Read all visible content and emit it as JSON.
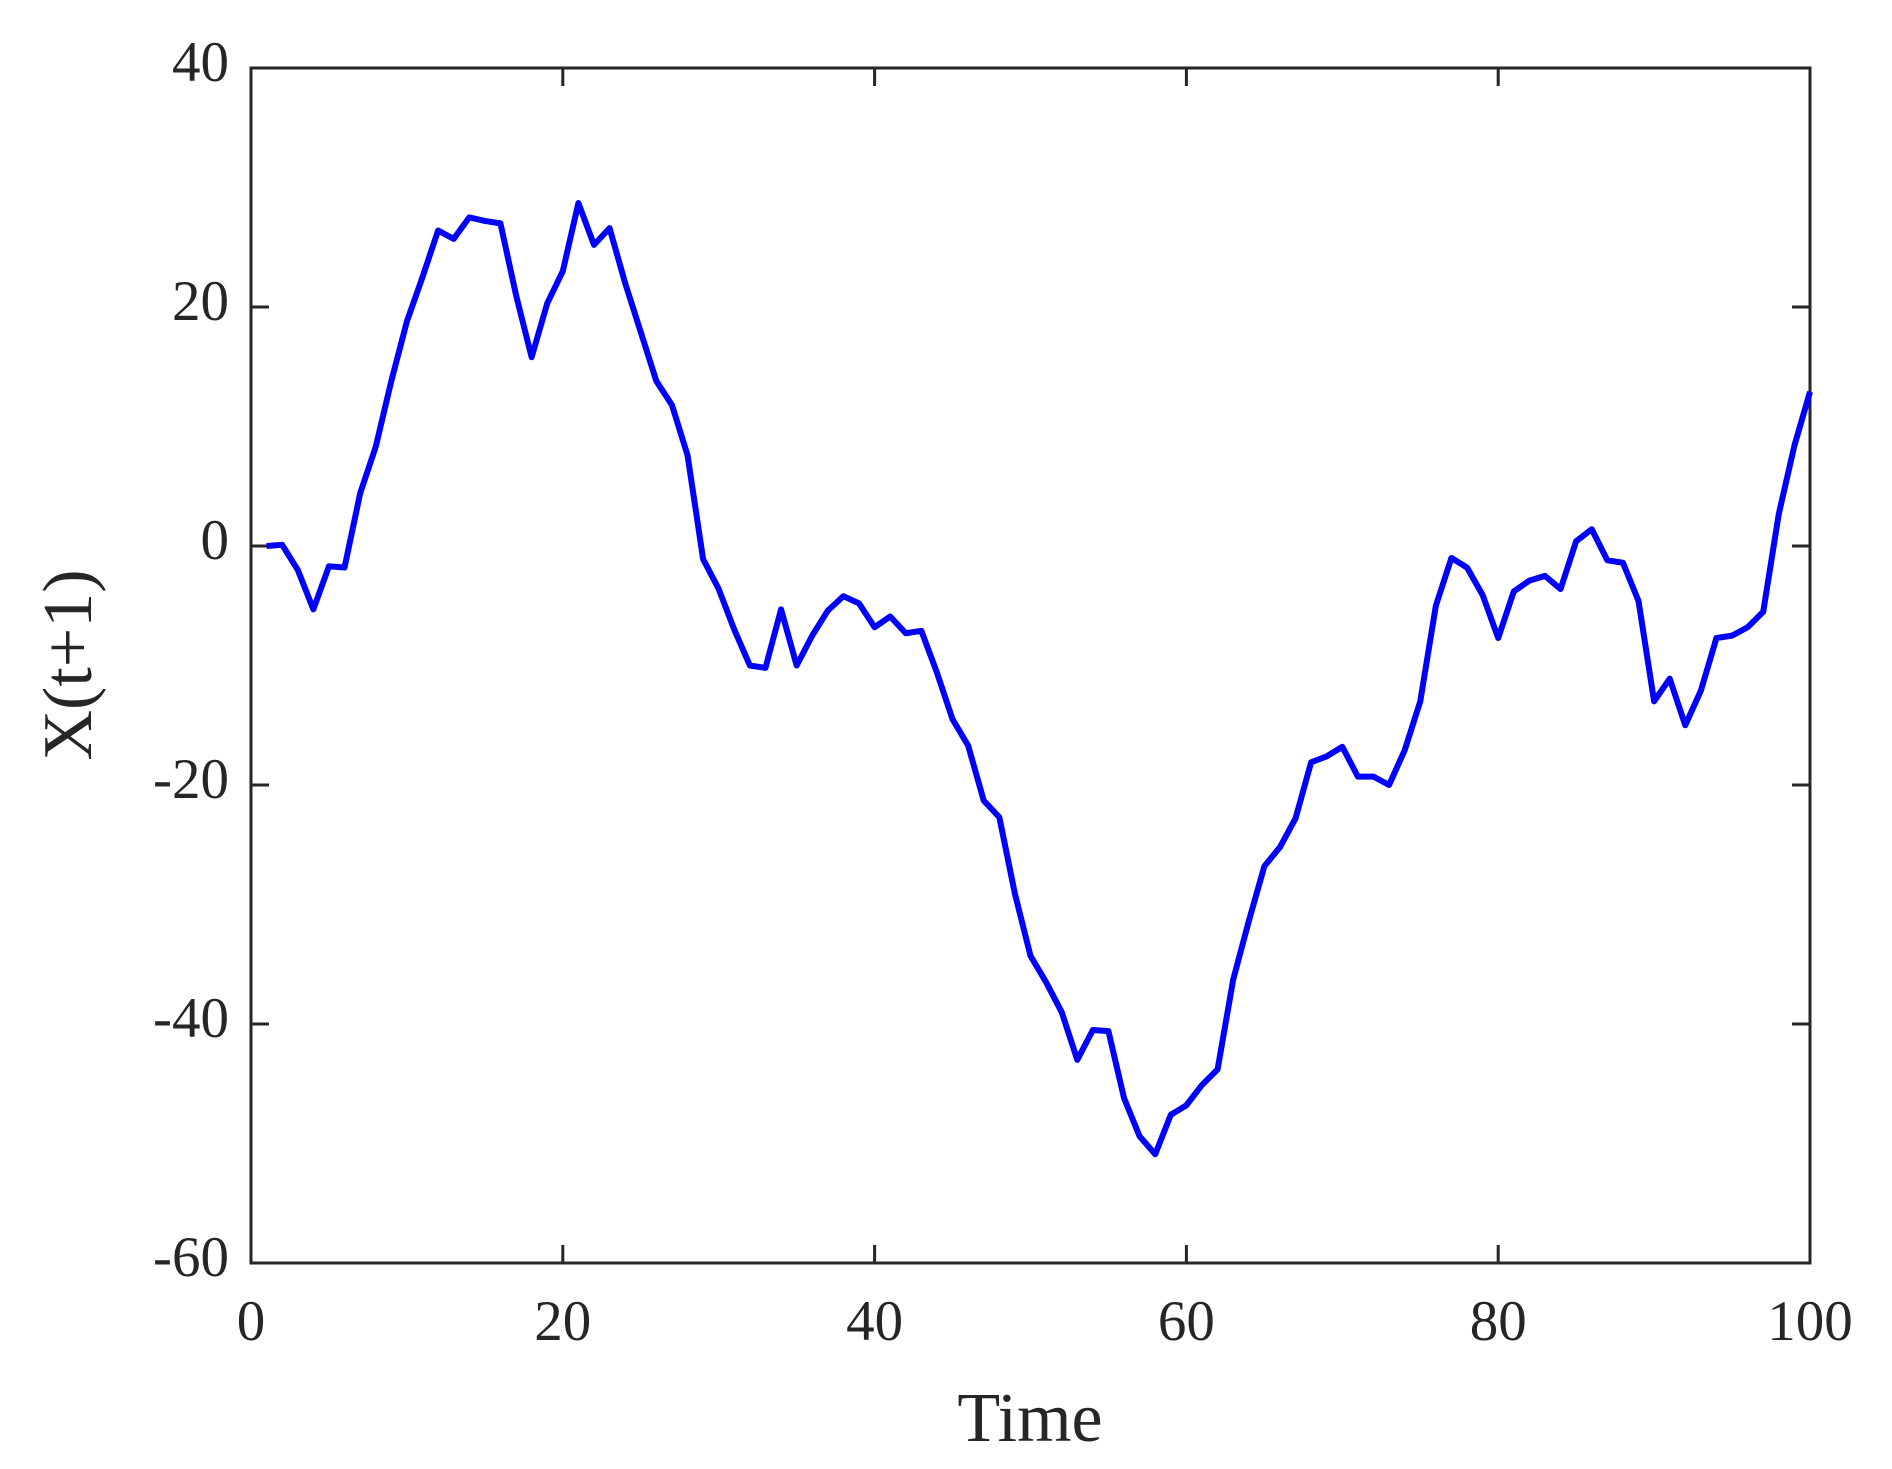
{
  "chart_data": {
    "type": "line",
    "xlabel": "Time",
    "ylabel": "X(t+1)",
    "x": [
      1,
      2,
      3,
      4,
      5,
      6,
      7,
      8,
      9,
      10,
      11,
      12,
      13,
      14,
      15,
      16,
      17,
      18,
      19,
      20,
      21,
      22,
      23,
      24,
      25,
      26,
      27,
      28,
      29,
      30,
      31,
      32,
      33,
      34,
      35,
      36,
      37,
      38,
      39,
      40,
      41,
      42,
      43,
      44,
      45,
      46,
      47,
      48,
      49,
      50,
      51,
      52,
      53,
      54,
      55,
      56,
      57,
      58,
      59,
      60,
      61,
      62,
      63,
      64,
      65,
      66,
      67,
      68,
      69,
      70,
      71,
      72,
      73,
      74,
      75,
      76,
      77,
      78,
      79,
      80,
      81,
      82,
      83,
      84,
      85,
      86,
      87,
      88,
      89,
      90,
      91,
      92,
      93,
      94,
      95,
      96,
      97,
      98,
      99,
      100
    ],
    "series": [
      {
        "color": "#0000ff",
        "values": [
          0,
          0.1,
          -2,
          -5.3,
          -1.7,
          -1.8,
          4.4,
          8.3,
          13.8,
          18.8,
          22.5,
          26.4,
          25.7,
          27.5,
          27.2,
          27.0,
          21,
          15.8,
          20.3,
          23,
          28.7,
          25.2,
          26.6,
          22,
          17.9,
          13.8,
          11.8,
          7.6,
          -1.1,
          -3.6,
          -7,
          -10,
          -10.2,
          -5.3,
          -10,
          -7.5,
          -5.4,
          -4.2,
          -4.8,
          -6.8,
          -5.9,
          -7.3,
          -7.1,
          -10.6,
          -14.5,
          -16.7,
          -21.3,
          -22.7,
          -29.1,
          -34.3,
          -36.5,
          -39,
          -43,
          -40.5,
          -40.6,
          -46.2,
          -49.4,
          -50.9,
          -47.6,
          -46.8,
          -45.1,
          -43.8,
          -36.3,
          -31.4,
          -26.8,
          -25.2,
          -22.8,
          -18.1,
          -17.6,
          -16.8,
          -19.3,
          -19.3,
          -20,
          -17.1,
          -13,
          -5,
          -1,
          -1.8,
          -4.1,
          -7.7,
          -3.8,
          -2.9,
          -2.5,
          -3.6,
          0.4,
          1.4,
          -1.2,
          -1.4,
          -4.6,
          -13,
          -11.1,
          -15,
          -12.1,
          -7.7,
          -7.5,
          -6.8,
          -5.5,
          2.7,
          8.4,
          12.9
        ]
      }
    ],
    "xlim": [
      0,
      100
    ],
    "xticks": [
      0,
      20,
      40,
      60,
      80,
      100
    ],
    "ylim": [
      -60,
      40
    ],
    "yticks": [
      -60,
      -40,
      -20,
      0,
      20,
      40
    ],
    "grid": false
  }
}
